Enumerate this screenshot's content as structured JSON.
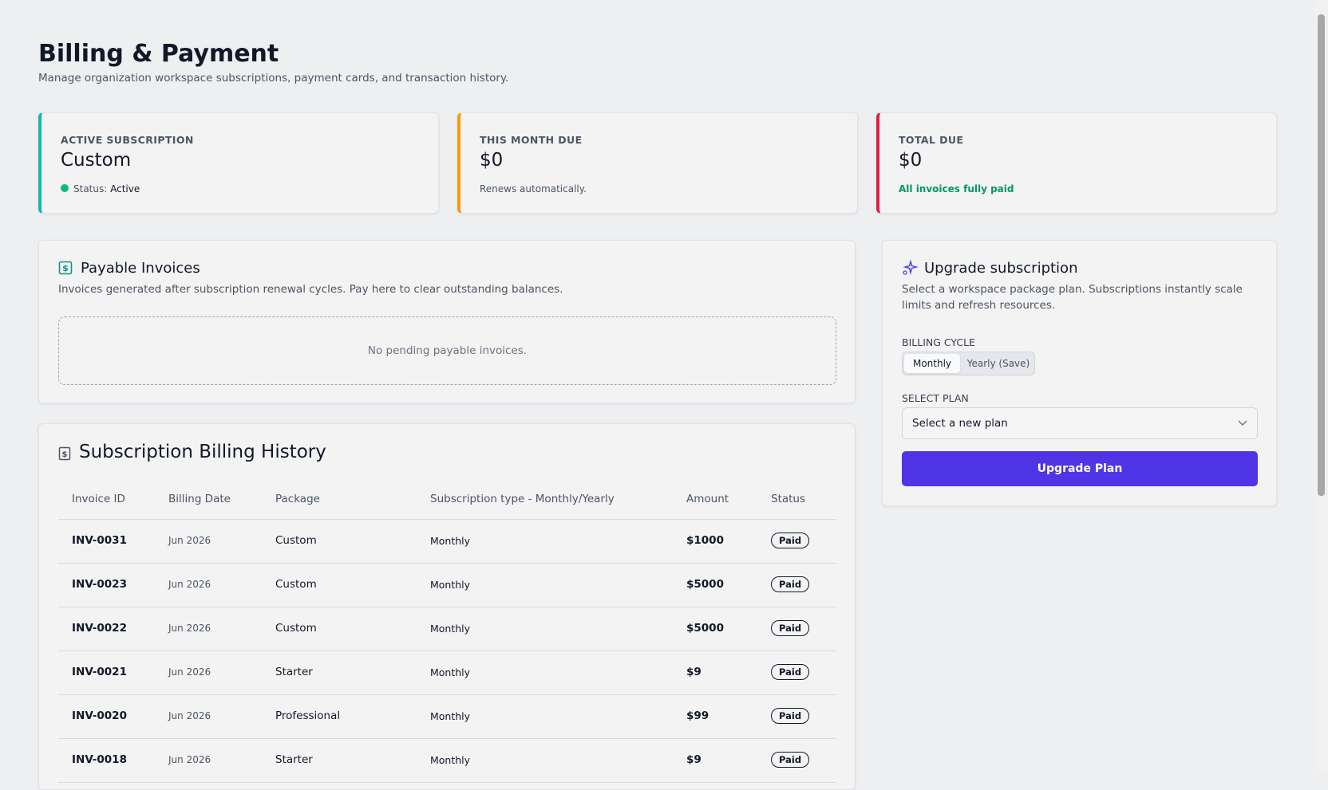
{
  "header": {
    "title": "Billing & Payment",
    "subtitle": "Manage organization workspace subscriptions, payment cards, and transaction history."
  },
  "stats": [
    {
      "label": "ACTIVE SUBSCRIPTION",
      "value": "Custom",
      "status_label": "Status:",
      "status_value": "Active"
    },
    {
      "label": "THIS MONTH DUE",
      "value": "$0",
      "note": "Renews automatically."
    },
    {
      "label": "TOTAL DUE",
      "value": "$0",
      "note": "All invoices fully paid"
    }
  ],
  "invoices": {
    "title": "Payable Invoices",
    "description": "Invoices generated after subscription renewal cycles. Pay here to clear outstanding balances.",
    "empty": "No pending payable invoices."
  },
  "history": {
    "title": "Subscription Billing History",
    "columns": [
      "Invoice ID",
      "Billing Date",
      "Package",
      "Subscription type - Monthly/Yearly",
      "Amount",
      "Status"
    ],
    "rows": [
      [
        "INV-0031",
        "Jun 2026",
        "Custom",
        "Monthly",
        "$1000",
        "Paid"
      ],
      [
        "INV-0023",
        "Jun 2026",
        "Custom",
        "Monthly",
        "$5000",
        "Paid"
      ],
      [
        "INV-0022",
        "Jun 2026",
        "Custom",
        "Monthly",
        "$5000",
        "Paid"
      ],
      [
        "INV-0021",
        "Jun 2026",
        "Starter",
        "Monthly",
        "$9",
        "Paid"
      ],
      [
        "INV-0020",
        "Jun 2026",
        "Professional",
        "Monthly",
        "$99",
        "Paid"
      ],
      [
        "INV-0018",
        "Jun 2026",
        "Starter",
        "Monthly",
        "$9",
        "Paid"
      ]
    ]
  },
  "upgrade": {
    "title": "Upgrade subscription",
    "description": "Select a workspace package plan. Subscriptions instantly scale limits and refresh resources.",
    "cycle_label": "BILLING CYCLE",
    "cycle_options": [
      "Monthly",
      "Yearly (Save)"
    ],
    "plan_label": "SELECT PLAN",
    "plan_placeholder": "Select a new plan",
    "button": "Upgrade Plan"
  }
}
